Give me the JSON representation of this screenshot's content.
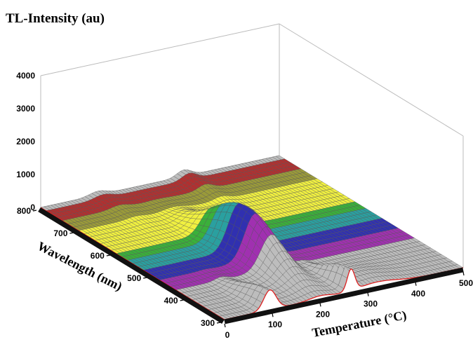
{
  "chart_data": {
    "type": "surface3d",
    "title": "",
    "zlabel": "TL-Intensity (au)",
    "xlabel": "Temperature (°C)",
    "ylabel": "Wavelength (nm)",
    "xlim": [
      0,
      500
    ],
    "ylim": [
      300,
      800
    ],
    "zlim": [
      0,
      4000
    ],
    "x_ticks": [
      "0",
      "100",
      "200",
      "300",
      "400",
      "500"
    ],
    "y_ticks": [
      "300",
      "400",
      "500",
      "600",
      "700",
      "800"
    ],
    "z_ticks": [
      "0",
      "1000",
      "2000",
      "3000",
      "4000"
    ],
    "colors": {
      "front_curve": "#dd2222",
      "mesh": "#555555",
      "base": "#111111"
    },
    "color_bands": [
      {
        "wavelength": [
          740,
          790
        ],
        "color": "#b03030"
      },
      {
        "wavelength": [
          690,
          740
        ],
        "color": "#9a9a3a"
      },
      {
        "wavelength": [
          600,
          690
        ],
        "color": "#f0f040"
      },
      {
        "wavelength": [
          560,
          600
        ],
        "color": "#3ab03a"
      },
      {
        "wavelength": [
          520,
          560
        ],
        "color": "#2aa0a0"
      },
      {
        "wavelength": [
          470,
          520
        ],
        "color": "#3030b0"
      },
      {
        "wavelength": [
          430,
          470
        ],
        "color": "#a030b0"
      }
    ],
    "peaks": [
      {
        "temperature": 200,
        "wavelength": 500,
        "intensity": 1450
      },
      {
        "temperature": 95,
        "wavelength": 300,
        "intensity": 600
      },
      {
        "temperature": 265,
        "wavelength": 300,
        "intensity": 650
      },
      {
        "temperature": 120,
        "wavelength": 800,
        "intensity": 120
      },
      {
        "temperature": 300,
        "wavelength": 800,
        "intensity": 200
      }
    ]
  }
}
